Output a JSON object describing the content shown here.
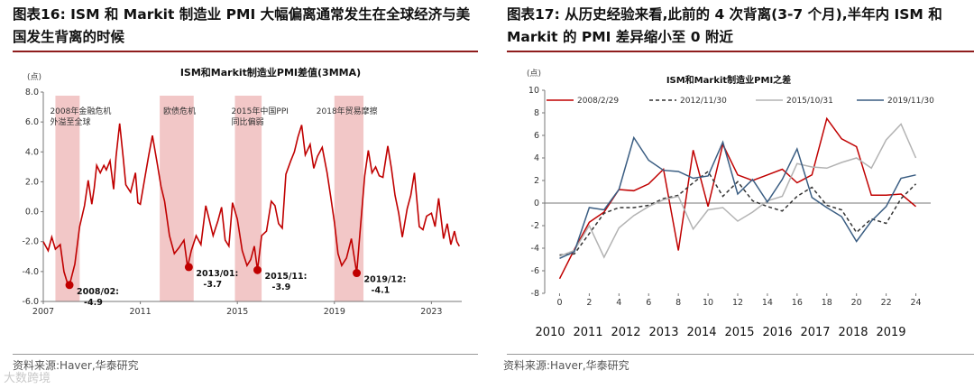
{
  "left": {
    "fig_title": "图表16:  ISM 和 Markit 制造业 PMI 大幅偏离通常发生在全球经济与美国发生背离的时候",
    "source": "资料来源:Haver,华泰研究",
    "watermark": "大数跨境",
    "chart_data": {
      "type": "line",
      "title": "ISM和Markit制造业PMI差值(3MMA)",
      "ylabel": "(点)",
      "ylim": [
        -6.0,
        8.0
      ],
      "yticks": [
        "8.0",
        "6.0",
        "4.0",
        "2.0",
        "0.0",
        "-2.0",
        "-4.0",
        "-6.0"
      ],
      "xlim": [
        2007.0,
        2024.25
      ],
      "xticks": [
        "2007",
        "2011",
        "2015",
        "2019",
        "2023"
      ],
      "series_color": "#c00000",
      "shaded_periods": [
        {
          "label": "2008年金融危机外溢至全球",
          "start": 2007.5,
          "end": 2008.5
        },
        {
          "label": "欧债危机",
          "start": 2011.8,
          "end": 2013.2
        },
        {
          "label": "2015年中国PPI同比偏弱",
          "start": 2014.9,
          "end": 2016.0
        },
        {
          "label": "2018年贸易摩擦",
          "start": 2019.0,
          "end": 2020.2
        }
      ],
      "annotations": [
        {
          "date": "2008/02:",
          "value": "-4.9",
          "x": 2008.08,
          "y": -4.9
        },
        {
          "date": "2013/01:",
          "value": "-3.7",
          "x": 2013.0,
          "y": -3.7
        },
        {
          "date": "2015/11:",
          "value": "-3.9",
          "x": 2015.83,
          "y": -3.9
        },
        {
          "date": "2019/12:",
          "value": "-4.1",
          "x": 2019.92,
          "y": -4.1
        }
      ],
      "x": [
        2007.0,
        2007.2,
        2007.35,
        2007.5,
        2007.7,
        2007.85,
        2008.0,
        2008.08,
        2008.3,
        2008.5,
        2008.7,
        2008.85,
        2009.0,
        2009.1,
        2009.2,
        2009.35,
        2009.5,
        2009.6,
        2009.75,
        2009.9,
        2010.0,
        2010.15,
        2010.3,
        2010.4,
        2010.6,
        2010.8,
        2010.9,
        2011.0,
        2011.2,
        2011.35,
        2011.5,
        2011.7,
        2011.85,
        2012.0,
        2012.2,
        2012.4,
        2012.6,
        2012.8,
        2012.95,
        2013.1,
        2013.3,
        2013.5,
        2013.7,
        2013.85,
        2014.0,
        2014.2,
        2014.35,
        2014.5,
        2014.65,
        2014.8,
        2015.0,
        2015.2,
        2015.4,
        2015.55,
        2015.7,
        2015.83,
        2016.0,
        2016.2,
        2016.4,
        2016.55,
        2016.7,
        2016.85,
        2017.0,
        2017.2,
        2017.35,
        2017.5,
        2017.65,
        2017.8,
        2018.0,
        2018.15,
        2018.3,
        2018.5,
        2018.7,
        2018.85,
        2019.0,
        2019.15,
        2019.3,
        2019.5,
        2019.7,
        2019.92,
        2020.1,
        2020.25,
        2020.4,
        2020.55,
        2020.7,
        2020.85,
        2021.0,
        2021.2,
        2021.35,
        2021.5,
        2021.65,
        2021.8,
        2022.0,
        2022.15,
        2022.3,
        2022.5,
        2022.65,
        2022.8,
        2023.0,
        2023.15,
        2023.3,
        2023.5,
        2023.65,
        2023.8,
        2023.95,
        2024.05,
        2024.15
      ],
      "values": [
        -2.0,
        -2.6,
        -1.7,
        -2.5,
        -2.2,
        -4.0,
        -4.8,
        -4.9,
        -3.5,
        -1.0,
        0.4,
        2.1,
        0.5,
        1.6,
        3.1,
        2.6,
        3.1,
        2.8,
        3.4,
        1.5,
        3.7,
        5.9,
        3.5,
        1.8,
        1.3,
        2.6,
        0.6,
        0.5,
        2.4,
        3.8,
        5.1,
        3.2,
        1.7,
        0.7,
        -1.6,
        -2.8,
        -2.4,
        -1.9,
        -3.7,
        -2.6,
        -1.6,
        -2.2,
        0.4,
        -0.6,
        -1.6,
        -0.6,
        0.3,
        -1.9,
        -2.3,
        0.6,
        -0.5,
        -2.6,
        -3.6,
        -3.2,
        -2.3,
        -3.9,
        -1.6,
        -1.3,
        0.7,
        0.4,
        -0.8,
        -1.1,
        2.5,
        3.4,
        4.0,
        5.0,
        5.8,
        3.8,
        4.5,
        2.9,
        3.7,
        4.3,
        2.6,
        1.0,
        -0.7,
        -2.8,
        -3.6,
        -3.1,
        -1.8,
        -4.1,
        -0.5,
        2.4,
        4.1,
        2.6,
        3.0,
        2.4,
        2.3,
        4.4,
        2.9,
        1.1,
        -0.1,
        -1.7,
        0.2,
        1.1,
        2.6,
        -1.0,
        -1.2,
        -0.3,
        -0.1,
        -1.0,
        0.9,
        -1.8,
        -0.8,
        -2.2,
        -1.3,
        -2.0,
        -2.3
      ]
    }
  },
  "right": {
    "fig_title": "图表17:  从历史经验来看,此前的 4 次背离(3-7 个月),半年内 ISM 和 Markit 的 PMI 差异缩小至 0 附近",
    "source": "资料来源:Haver,华泰研究",
    "chart_data": {
      "type": "line",
      "title": "ISM和Markit制造业PMI之差",
      "ylabel": "(点)",
      "ylim": [
        -8,
        10
      ],
      "yticks": [
        "10",
        "8",
        "6",
        "4",
        "2",
        "0",
        "-2",
        "-4",
        "-6",
        "-8"
      ],
      "xlim": [
        -1,
        25
      ],
      "xticks": [
        "0",
        "2",
        "4",
        "6",
        "8",
        "10",
        "12",
        "14",
        "16",
        "18",
        "20",
        "22",
        "24"
      ],
      "year_labels": [
        "2010",
        "2011",
        "2012",
        "2013",
        "2014",
        "2015",
        "2016",
        "2017",
        "2018",
        "2019"
      ],
      "series": [
        {
          "name": "2008/2/29",
          "color": "#c00000",
          "dash": "none",
          "values": [
            -6.7,
            -4.1,
            -1.7,
            -0.8,
            1.2,
            1.1,
            1.7,
            3.0,
            -4.2,
            4.7,
            -0.3,
            5.2,
            2.5,
            2.0,
            2.5,
            3.0,
            1.8,
            2.5,
            7.5,
            5.7,
            5.0,
            0.7,
            0.7,
            0.8,
            -0.3
          ]
        },
        {
          "name": "2012/11/30",
          "color": "#333333",
          "dash": "4,3",
          "values": [
            -4.6,
            -4.5,
            -2.7,
            -0.9,
            -0.4,
            -0.4,
            -0.2,
            0.4,
            0.7,
            1.8,
            2.8,
            0.6,
            1.9,
            0.2,
            -0.3,
            -0.7,
            0.6,
            1.4,
            -0.2,
            -0.6,
            -2.6,
            -1.4,
            -1.8,
            0.4,
            1.7
          ]
        },
        {
          "name": "2015/10/31",
          "color": "#b3b3b3",
          "dash": "none",
          "values": [
            -4.7,
            -4.2,
            -2.0,
            -4.8,
            -2.2,
            -1.1,
            -0.3,
            0.3,
            0.6,
            -2.3,
            -0.6,
            -0.4,
            -1.6,
            -0.8,
            0.2,
            0.6,
            3.5,
            3.2,
            3.1,
            3.6,
            4.0,
            3.1,
            5.6,
            7.0,
            4.0
          ]
        },
        {
          "name": "2019/11/30",
          "color": "#3a5d82",
          "dash": "none",
          "values": [
            -4.9,
            -4.3,
            -0.4,
            -0.6,
            1.2,
            5.8,
            3.8,
            2.9,
            2.8,
            2.2,
            2.4,
            5.4,
            0.8,
            2.1,
            0.1,
            2.1,
            4.8,
            0.5,
            -0.4,
            -1.2,
            -3.4,
            -1.6,
            -0.3,
            2.2,
            2.5
          ]
        }
      ]
    }
  }
}
